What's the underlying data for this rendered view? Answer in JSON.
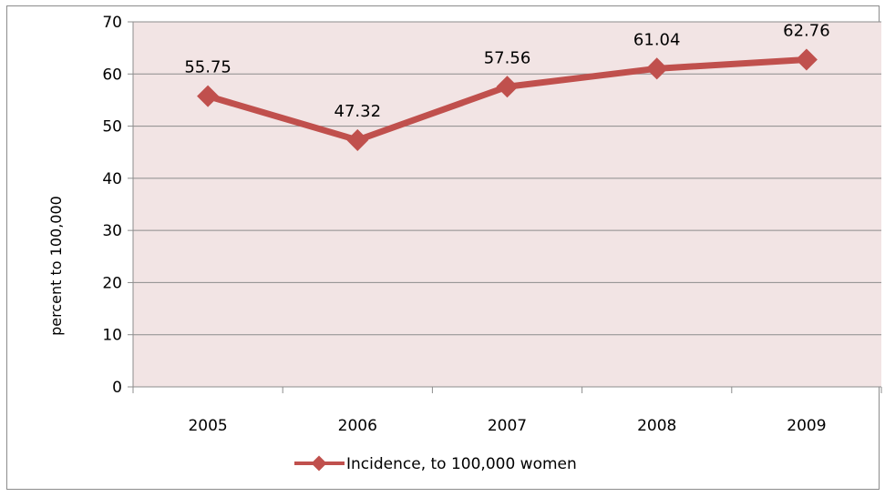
{
  "colors": {
    "series": "#c0504d",
    "plot_background": "#f2e4e4",
    "gridline": "#8c8c8c",
    "axis": "#8c8c8c"
  },
  "chart_data": {
    "type": "line",
    "categories": [
      "2005",
      "2006",
      "2007",
      "2008",
      "2009"
    ],
    "series": [
      {
        "name": "Incidence, to 100,000 women",
        "values": [
          55.75,
          47.32,
          57.56,
          61.04,
          62.76
        ],
        "data_labels": [
          "55.75",
          "47.32",
          "57.56",
          "61.04",
          "62.76"
        ],
        "marker": "diamond"
      }
    ],
    "ylabel": "percent to 100,000",
    "xlabel": "",
    "title": "",
    "ylim": [
      0,
      70
    ],
    "yticks": [
      0,
      10,
      20,
      30,
      40,
      50,
      60,
      70
    ],
    "grid": "horizontal",
    "legend_position": "bottom"
  }
}
